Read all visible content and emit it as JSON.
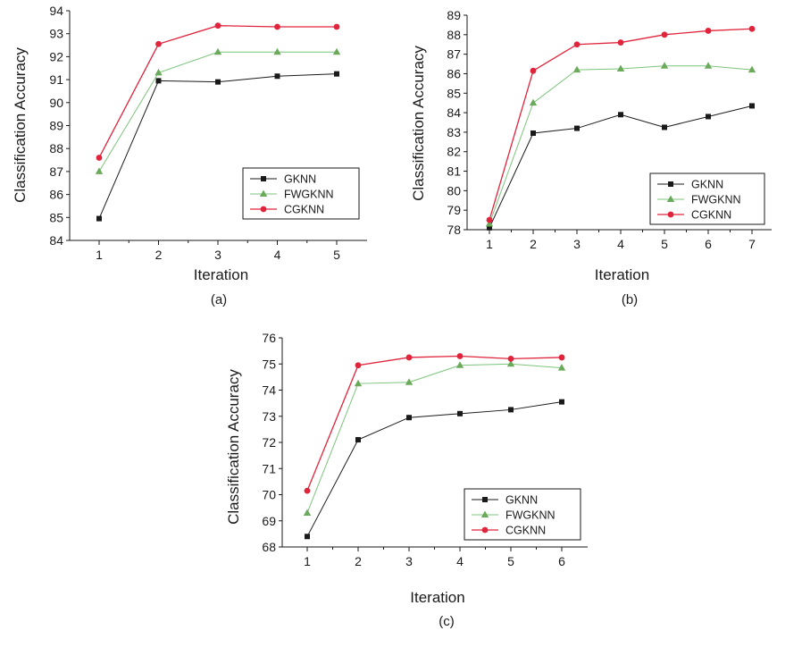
{
  "colors": {
    "axis": "#1a1a1a",
    "gknn": "#1a1a1a",
    "fwgknn_line": "#7cc47c",
    "fwgknn_marker": "#6aaa5a",
    "cgknn": "#e0243c"
  },
  "chart_data": [
    {
      "type": "line",
      "caption": "(a)",
      "xlabel": "Iteration",
      "ylabel": "Classification Accuracy",
      "categories": [
        1,
        2,
        3,
        4,
        5
      ],
      "ylim": [
        84,
        94
      ],
      "yticks": [
        84,
        85,
        86,
        87,
        88,
        89,
        90,
        91,
        92,
        93,
        94
      ],
      "legend_position": "bottom-right",
      "series": [
        {
          "name": "GKNN",
          "marker": "square",
          "values": [
            84.95,
            90.95,
            90.9,
            91.15,
            91.25
          ]
        },
        {
          "name": "FWGKNN",
          "marker": "triangle",
          "values": [
            87.0,
            91.3,
            92.2,
            92.2,
            92.2
          ]
        },
        {
          "name": "CGKNN",
          "marker": "circle",
          "values": [
            87.6,
            92.55,
            93.35,
            93.3,
            93.3
          ]
        }
      ]
    },
    {
      "type": "line",
      "caption": "(b)",
      "xlabel": "Iteration",
      "ylabel": "Classification Accuracy",
      "categories": [
        1,
        2,
        3,
        4,
        5,
        6,
        7
      ],
      "ylim": [
        78,
        89
      ],
      "yticks": [
        78,
        79,
        80,
        81,
        82,
        83,
        84,
        85,
        86,
        87,
        88,
        89
      ],
      "legend_position": "bottom-right",
      "series": [
        {
          "name": "GKNN",
          "marker": "square",
          "values": [
            78.1,
            82.95,
            83.2,
            83.9,
            83.25,
            83.8,
            84.35
          ]
        },
        {
          "name": "FWGKNN",
          "marker": "triangle",
          "values": [
            78.3,
            84.5,
            86.2,
            86.25,
            86.4,
            86.4,
            86.2
          ]
        },
        {
          "name": "CGKNN",
          "marker": "circle",
          "values": [
            78.5,
            86.15,
            87.5,
            87.6,
            88.0,
            88.2,
            88.3
          ]
        }
      ]
    },
    {
      "type": "line",
      "caption": "(c)",
      "xlabel": "Iteration",
      "ylabel": "Classification Accuracy",
      "categories": [
        1,
        2,
        3,
        4,
        5,
        6
      ],
      "ylim": [
        68,
        76
      ],
      "yticks": [
        68,
        69,
        70,
        71,
        72,
        73,
        74,
        75,
        76
      ],
      "legend_position": "bottom-right",
      "series": [
        {
          "name": "GKNN",
          "marker": "square",
          "values": [
            68.4,
            72.1,
            72.95,
            73.1,
            73.25,
            73.55
          ]
        },
        {
          "name": "FWGKNN",
          "marker": "triangle",
          "values": [
            69.3,
            74.25,
            74.3,
            74.95,
            75.0,
            74.85
          ]
        },
        {
          "name": "CGKNN",
          "marker": "circle",
          "values": [
            70.15,
            74.95,
            75.25,
            75.3,
            75.2,
            75.25
          ]
        }
      ]
    }
  ]
}
